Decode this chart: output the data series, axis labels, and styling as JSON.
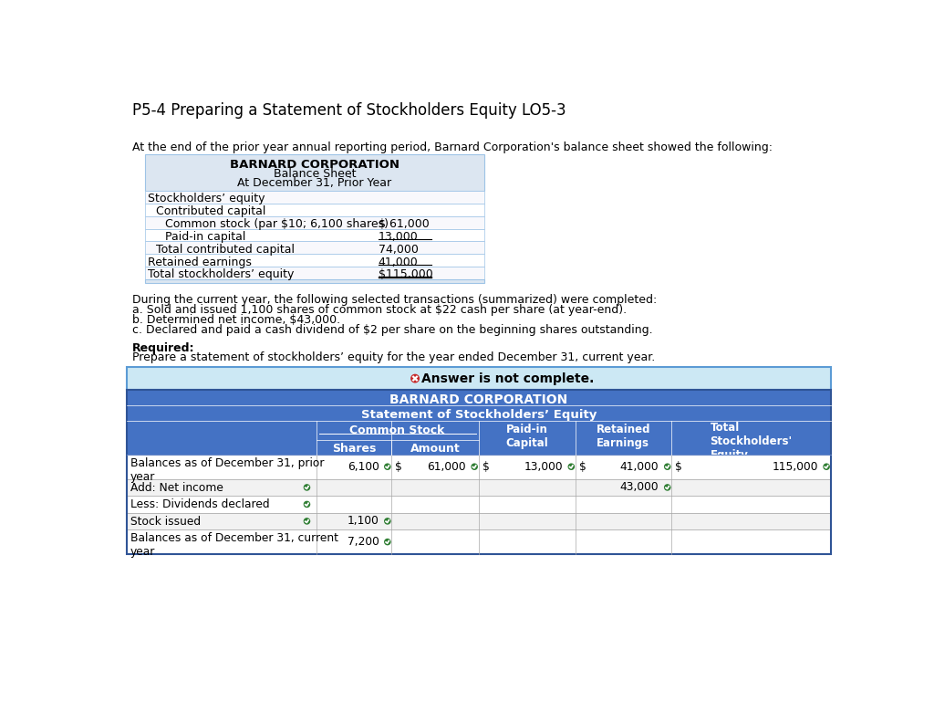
{
  "title": "P5-4 Preparing a Statement of Stockholders Equity LO5-3",
  "intro_text": "At the end of the prior year annual reporting period, Barnard Corporation's balance sheet showed the following:",
  "bs_header": [
    "BARNARD CORPORATION",
    "Balance Sheet",
    "At December 31, Prior Year"
  ],
  "bs_rows": [
    {
      "label": "Stockholders’ equity",
      "value": "",
      "indent": 0
    },
    {
      "label": "Contributed capital",
      "value": "",
      "indent": 1
    },
    {
      "label": "Common stock (par $10; 6,100 shares)",
      "value": "$ 61,000",
      "indent": 2,
      "underline": false
    },
    {
      "label": "Paid-in capital",
      "value": "13,000",
      "indent": 2,
      "underline": true
    },
    {
      "label": "Total contributed capital",
      "value": "74,000",
      "indent": 1,
      "underline": false
    },
    {
      "label": "Retained earnings",
      "value": "41,000",
      "indent": 0,
      "underline": true
    },
    {
      "label": "Total stockholders’ equity",
      "value": "$115,000",
      "indent": 0,
      "double_underline": true
    }
  ],
  "trans_header": "During the current year, the following selected transactions (summarized) were completed:",
  "transactions": [
    "a. Sold and issued 1,100 shares of common stock at $22 cash per share (at year-end).",
    "b. Determined net income, $43,000.",
    "c. Declared and paid a cash dividend of $2 per share on the beginning shares outstanding."
  ],
  "required_label": "Required:",
  "required_text": "Prepare a statement of stockholders’ equity for the year ended December 31, current year.",
  "banner_text": "Answer is not complete.",
  "banner_bg": "#cce8f4",
  "banner_border": "#5b9bd5",
  "stmt_title1": "BARNARD CORPORATION",
  "stmt_title2": "Statement of Stockholders’ Equity",
  "table_blue": "#4472c4",
  "table_white": "#ffffff",
  "table_gray": "#f2f2f2",
  "bs_bg": "#dce6f1",
  "bs_border": "#9dc3e6",
  "green": "#2e7d32",
  "red": "#c62828",
  "stmt_rows": [
    {
      "label": "Balances as of December 31, prior\nyear",
      "shares": "6,100",
      "amount": "61,000",
      "paid_in": "13,000",
      "retained": "41,000",
      "total": "115,000",
      "ck_sh": true,
      "ck_am": true,
      "ck_pi": true,
      "ck_re": true,
      "ck_to": true,
      "ds_am": true,
      "ds_pi": true,
      "ds_re": true,
      "ds_to": true
    },
    {
      "label": "Add: Net income",
      "shares": "",
      "amount": "",
      "paid_in": "",
      "retained": "43,000",
      "total": "",
      "ck_label": true,
      "ck_re": true
    },
    {
      "label": "Less: Dividends declared",
      "shares": "",
      "amount": "",
      "paid_in": "",
      "retained": "",
      "total": "",
      "ck_label": true
    },
    {
      "label": "Stock issued",
      "shares": "1,100",
      "amount": "",
      "paid_in": "",
      "retained": "",
      "total": "",
      "ck_label": true,
      "ck_sh": true
    },
    {
      "label": "Balances as of December 31, current\nyear",
      "shares": "7,200",
      "amount": "",
      "paid_in": "",
      "retained": "",
      "total": "",
      "ck_sh": true
    }
  ]
}
